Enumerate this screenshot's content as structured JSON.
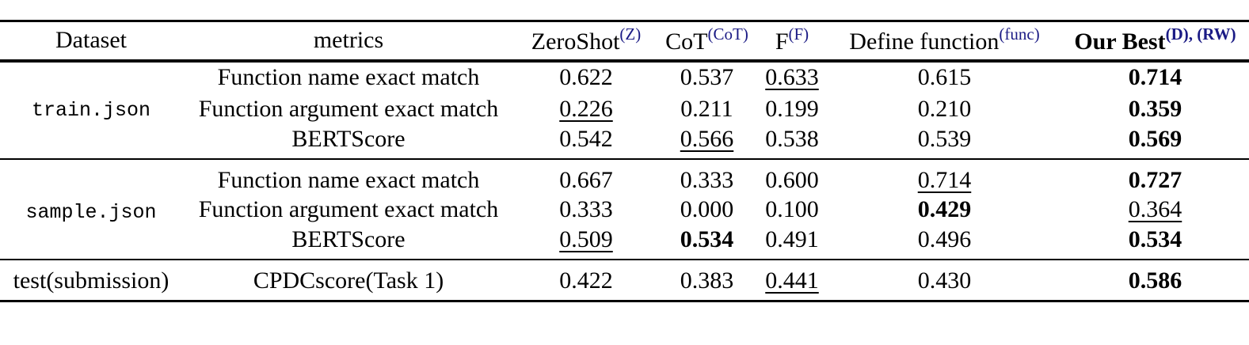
{
  "colors": {
    "text": "#000000",
    "background": "#ffffff",
    "superscript_accent": "#1b1b85"
  },
  "table": {
    "columns": [
      {
        "label": "Dataset",
        "sup": "",
        "bold": false
      },
      {
        "label": "metrics",
        "sup": "",
        "bold": false
      },
      {
        "label": "ZeroShot",
        "sup": "(Z)",
        "bold": false
      },
      {
        "label": "CoT",
        "sup": "(CoT)",
        "bold": false
      },
      {
        "label": "F",
        "sup": "(F)",
        "bold": false
      },
      {
        "label": "Define function",
        "sup": "(func)",
        "bold": false
      },
      {
        "label": "Our Best",
        "sup": "(D), (RW)",
        "bold": true
      }
    ],
    "groups": [
      {
        "dataset": "train.json",
        "mono": true,
        "rows": [
          {
            "metric": "Function name exact match",
            "values": [
              {
                "text": "0.622",
                "style": "plain"
              },
              {
                "text": "0.537",
                "style": "plain"
              },
              {
                "text": "0.633",
                "style": "underline"
              },
              {
                "text": "0.615",
                "style": "plain"
              },
              {
                "text": "0.714",
                "style": "bold"
              }
            ]
          },
          {
            "metric": "Function argument exact match",
            "values": [
              {
                "text": "0.226",
                "style": "underline"
              },
              {
                "text": "0.211",
                "style": "plain"
              },
              {
                "text": "0.199",
                "style": "plain"
              },
              {
                "text": "0.210",
                "style": "plain"
              },
              {
                "text": "0.359",
                "style": "bold"
              }
            ]
          },
          {
            "metric": "BERTScore",
            "values": [
              {
                "text": "0.542",
                "style": "plain"
              },
              {
                "text": "0.566",
                "style": "underline"
              },
              {
                "text": "0.538",
                "style": "plain"
              },
              {
                "text": "0.539",
                "style": "plain"
              },
              {
                "text": "0.569",
                "style": "bold"
              }
            ]
          }
        ]
      },
      {
        "dataset": "sample.json",
        "mono": true,
        "rows": [
          {
            "metric": "Function name exact match",
            "values": [
              {
                "text": "0.667",
                "style": "plain"
              },
              {
                "text": "0.333",
                "style": "plain"
              },
              {
                "text": "0.600",
                "style": "plain"
              },
              {
                "text": "0.714",
                "style": "underline"
              },
              {
                "text": "0.727",
                "style": "bold"
              }
            ]
          },
          {
            "metric": "Function argument exact match",
            "values": [
              {
                "text": "0.333",
                "style": "plain"
              },
              {
                "text": "0.000",
                "style": "plain"
              },
              {
                "text": "0.100",
                "style": "plain"
              },
              {
                "text": "0.429",
                "style": "bold"
              },
              {
                "text": "0.364",
                "style": "underline"
              }
            ]
          },
          {
            "metric": "BERTScore",
            "values": [
              {
                "text": "0.509",
                "style": "underline"
              },
              {
                "text": "0.534",
                "style": "bold"
              },
              {
                "text": "0.491",
                "style": "plain"
              },
              {
                "text": "0.496",
                "style": "plain"
              },
              {
                "text": "0.534",
                "style": "bold"
              }
            ]
          }
        ]
      },
      {
        "dataset": "test(submission)",
        "mono": false,
        "rows": [
          {
            "metric": "CPDCscore(Task 1)",
            "values": [
              {
                "text": "0.422",
                "style": "plain"
              },
              {
                "text": "0.383",
                "style": "plain"
              },
              {
                "text": "0.441",
                "style": "underline"
              },
              {
                "text": "0.430",
                "style": "plain"
              },
              {
                "text": "0.586",
                "style": "bold"
              }
            ]
          }
        ]
      }
    ]
  }
}
